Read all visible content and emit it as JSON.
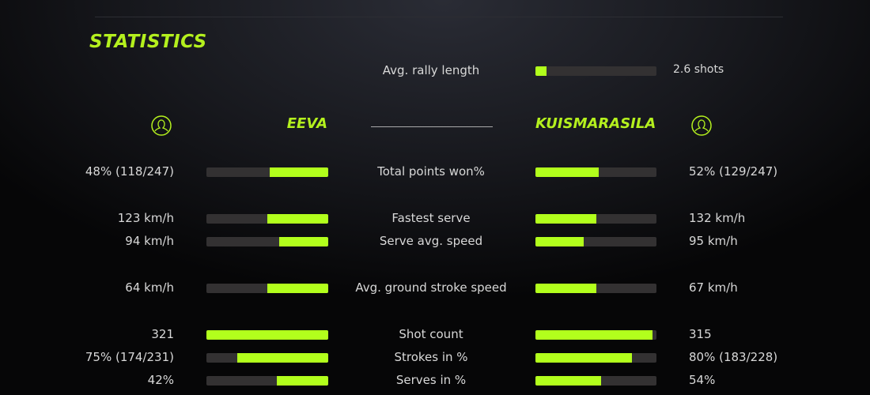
{
  "title": "STATISTICS",
  "accent": "#b2ff1c",
  "rally": {
    "label": "Avg. rally length",
    "value": "2.6 shots",
    "fill": 0.09
  },
  "players": {
    "left": {
      "name": "EEVA",
      "icon": "user-circle-icon"
    },
    "right": {
      "name": "KUISMARASILA",
      "icon": "user-circle-icon"
    }
  },
  "stats": [
    {
      "label": "Total points won%",
      "left": "48% (118/247)",
      "right": "52% (129/247)",
      "left_fill": 0.48,
      "right_fill": 0.52
    },
    {
      "label": "Fastest serve",
      "left": "123 km/h",
      "right": "132 km/h",
      "left_fill": 0.5,
      "right_fill": 0.5
    },
    {
      "label": "Serve avg. speed",
      "left": "94 km/h",
      "right": "95 km/h",
      "left_fill": 0.4,
      "right_fill": 0.4
    },
    {
      "label": "Avg. ground stroke speed",
      "left": "64 km/h",
      "right": "67 km/h",
      "left_fill": 0.5,
      "right_fill": 0.5
    },
    {
      "label": "Shot count",
      "left": "321",
      "right": "315",
      "left_fill": 1.0,
      "right_fill": 0.97
    },
    {
      "label": "Strokes in %",
      "left": "75% (174/231)",
      "right": "80% (183/228)",
      "left_fill": 0.75,
      "right_fill": 0.8
    },
    {
      "label": "Serves in %",
      "left": "42%",
      "right": "54%",
      "left_fill": 0.42,
      "right_fill": 0.54
    }
  ]
}
